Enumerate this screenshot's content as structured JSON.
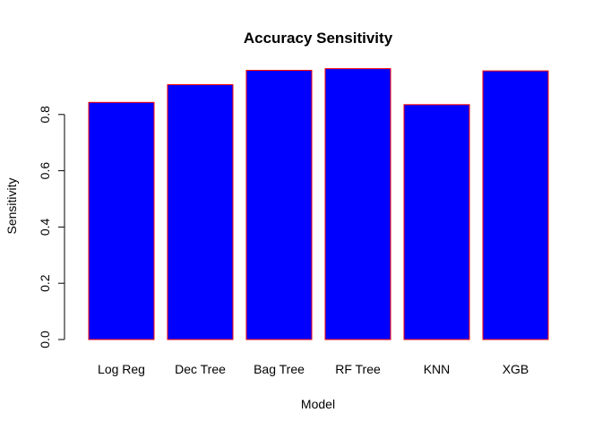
{
  "chart_data": {
    "type": "bar",
    "title": "Accuracy Sensitivity",
    "xlabel": "Model",
    "ylabel": "Sensitivity",
    "categories": [
      "Log Reg",
      "Dec Tree",
      "Bag Tree",
      "RF Tree",
      "KNN",
      "XGB"
    ],
    "values": [
      0.843,
      0.906,
      0.957,
      0.963,
      0.835,
      0.955
    ],
    "ylim": [
      0,
      1.0
    ],
    "yticks": [
      0.0,
      0.2,
      0.4,
      0.6,
      0.8
    ],
    "ytick_labels": [
      "0.0",
      "0.2",
      "0.4",
      "0.6",
      "0.8"
    ],
    "grid": false,
    "legend": "none",
    "colors": {
      "bar_fill": "#0000ff",
      "bar_border": "#ff0000"
    }
  }
}
